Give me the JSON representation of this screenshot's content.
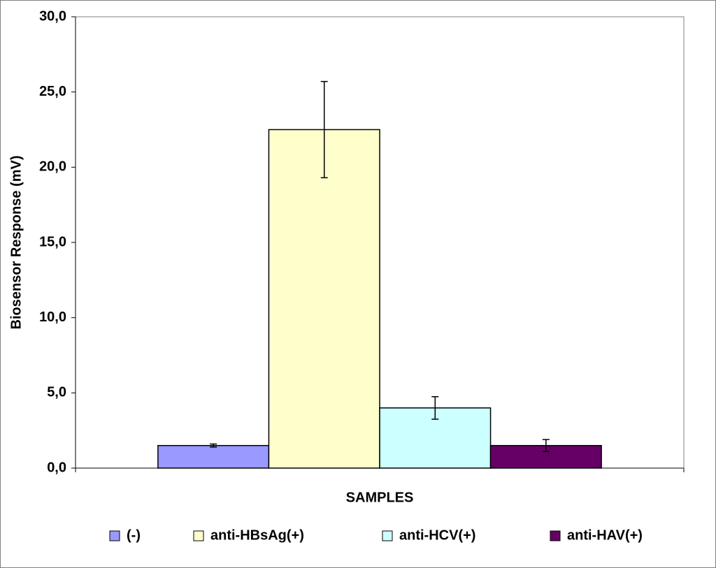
{
  "chart_data": {
    "type": "bar",
    "x_label": "SAMPLES",
    "y_label": "Biosensor Response (mV)",
    "categories": [
      null
    ],
    "series": [
      {
        "name": "(-)",
        "color": "#9999ff",
        "values": [
          1.5
        ],
        "errors": [
          0.1
        ]
      },
      {
        "name": "anti-HBsAg(+)",
        "color": "#ffffcc",
        "values": [
          22.5
        ],
        "errors": [
          3.2
        ]
      },
      {
        "name": "anti-HCV(+)",
        "color": "#ccffff",
        "values": [
          4.0
        ],
        "errors": [
          0.75
        ]
      },
      {
        "name": "anti-HAV(+)",
        "color": "#660066",
        "values": [
          1.5
        ],
        "errors": [
          0.4
        ]
      }
    ],
    "ylim": [
      0,
      30
    ],
    "yticks": [
      {
        "value": 0,
        "label": "0,0"
      },
      {
        "value": 5,
        "label": "5,0"
      },
      {
        "value": 10,
        "label": "10,0"
      },
      {
        "value": 15,
        "label": "15,0"
      },
      {
        "value": 20,
        "label": "20,0"
      },
      {
        "value": 25,
        "label": "25,0"
      },
      {
        "value": 30,
        "label": "30,0"
      }
    ],
    "grid": false,
    "legend": "bottom"
  }
}
